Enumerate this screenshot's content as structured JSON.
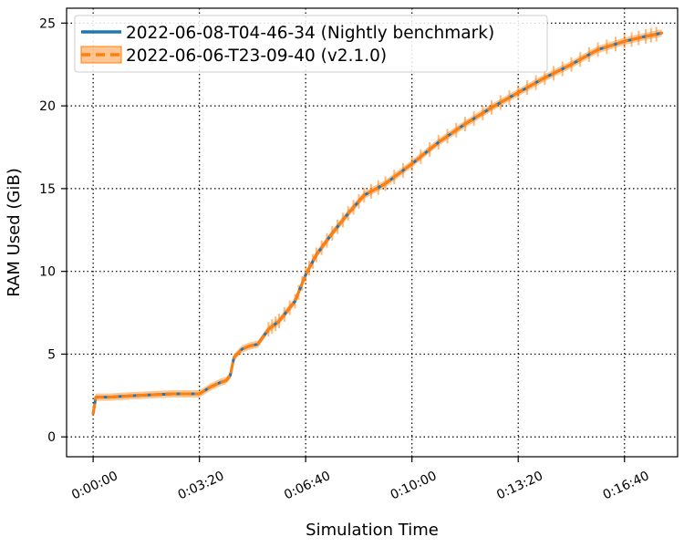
{
  "chart_data": {
    "type": "line",
    "title": "",
    "xlabel": "Simulation Time",
    "ylabel": "RAM Used (GiB)",
    "x_unit": "seconds",
    "xlim": [
      -50,
      1100
    ],
    "ylim": [
      -1.2,
      25.9
    ],
    "xticks": [
      0,
      200,
      400,
      600,
      800,
      1000
    ],
    "x_tick_labels": [
      "0:00:00",
      "0:03:20",
      "0:06:40",
      "0:10:00",
      "0:13:20",
      "0:16:40"
    ],
    "yticks": [
      0,
      5,
      10,
      15,
      20,
      25
    ],
    "y_tick_labels": [
      "0",
      "5",
      "10",
      "15",
      "20",
      "25"
    ],
    "grid": true,
    "grid_style": "dotted",
    "legend_position": "top-left",
    "series": [
      {
        "name": "2022-06-08-T04-46-34 (Nightly benchmark)",
        "color": "#1f77b4",
        "line_style": "solid",
        "x": [
          0,
          5,
          30,
          80,
          150,
          200,
          220,
          240,
          250,
          258,
          265,
          280,
          295,
          310,
          330,
          350,
          380,
          400,
          420,
          450,
          480,
          510,
          550,
          600,
          650,
          700,
          750,
          800,
          850,
          900,
          950,
          1000,
          1040,
          1070
        ],
        "y": [
          1.4,
          2.4,
          2.4,
          2.5,
          2.6,
          2.6,
          3.0,
          3.3,
          3.4,
          3.7,
          4.8,
          5.3,
          5.5,
          5.6,
          6.5,
          7.0,
          8.2,
          9.8,
          11.0,
          12.3,
          13.5,
          14.6,
          15.3,
          16.5,
          17.8,
          18.9,
          19.9,
          20.8,
          21.7,
          22.5,
          23.4,
          23.9,
          24.2,
          24.4
        ]
      },
      {
        "name": "2022-06-06-T23-09-40 (v2.1.0)",
        "color": "#ff7f0e",
        "line_style": "dashed",
        "band": true,
        "x": [
          0,
          5,
          30,
          80,
          150,
          200,
          220,
          240,
          250,
          258,
          265,
          280,
          295,
          310,
          330,
          350,
          380,
          400,
          420,
          450,
          480,
          510,
          550,
          600,
          650,
          700,
          750,
          800,
          850,
          900,
          950,
          1000,
          1040,
          1070
        ],
        "y": [
          1.4,
          2.4,
          2.4,
          2.5,
          2.6,
          2.6,
          3.0,
          3.3,
          3.4,
          3.7,
          4.8,
          5.3,
          5.5,
          5.6,
          6.5,
          7.0,
          8.2,
          9.8,
          11.0,
          12.3,
          13.5,
          14.6,
          15.3,
          16.5,
          17.8,
          18.9,
          19.9,
          20.8,
          21.7,
          22.5,
          23.4,
          23.9,
          24.2,
          24.4
        ]
      }
    ]
  }
}
